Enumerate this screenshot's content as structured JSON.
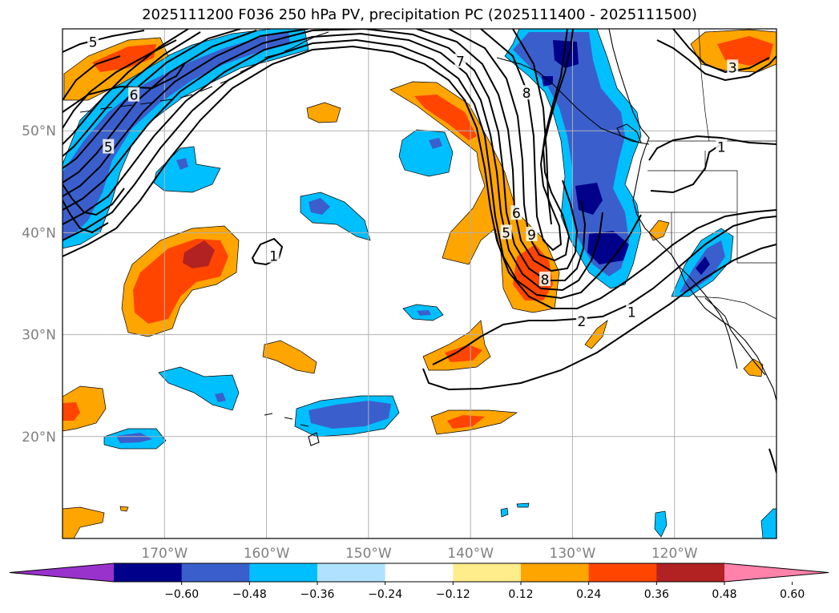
{
  "title": "2025111200 F036 250 hPa PV, precipitation PC (2025111400 - 2025111500)",
  "map": {
    "projection": "equirectangular",
    "lon_range": [
      -180,
      -110
    ],
    "lat_range": [
      10,
      60
    ],
    "grid": true,
    "lat_ticks": [
      {
        "value": 50,
        "label": "50°N"
      },
      {
        "value": 40,
        "label": "40°N"
      },
      {
        "value": 30,
        "label": "30°N"
      },
      {
        "value": 20,
        "label": "20°N"
      }
    ],
    "lon_ticks": [
      {
        "value": -170,
        "label": "170°W"
      },
      {
        "value": -160,
        "label": "160°W"
      },
      {
        "value": -150,
        "label": "150°W"
      },
      {
        "value": -140,
        "label": "140°W"
      },
      {
        "value": -130,
        "label": "130°W"
      },
      {
        "value": -120,
        "label": "120°W"
      }
    ],
    "pv_contour_labels": [
      {
        "text": "5",
        "lon": -177,
        "lat": 58.7
      },
      {
        "text": "6",
        "lon": -173,
        "lat": 53.5
      },
      {
        "text": "5",
        "lon": -175.5,
        "lat": 48.4
      },
      {
        "text": "7",
        "lon": -141,
        "lat": 56.8
      },
      {
        "text": "8",
        "lon": -134.5,
        "lat": 53.7
      },
      {
        "text": "1",
        "lon": -159.3,
        "lat": 37.7
      },
      {
        "text": "6",
        "lon": -135.5,
        "lat": 41.9
      },
      {
        "text": "5",
        "lon": -136.5,
        "lat": 40
      },
      {
        "text": "9",
        "lon": -134,
        "lat": 39.8
      },
      {
        "text": "8",
        "lon": -132.7,
        "lat": 35.4
      },
      {
        "text": "2",
        "lon": -129.1,
        "lat": 31.3
      },
      {
        "text": "1",
        "lon": -124.2,
        "lat": 32.2
      },
      {
        "text": "1",
        "lon": -115.4,
        "lat": 48.4
      },
      {
        "text": "3",
        "lon": -114.3,
        "lat": 56.2
      }
    ]
  },
  "colorbar": {
    "extend": "both",
    "colors": [
      "#9932cc",
      "#00008b",
      "#3a5fcd",
      "#00bfff",
      "#b0e2ff",
      "#ffffff",
      "#ffec8b",
      "#ffa500",
      "#ff4500",
      "#b22222",
      "#ff82ab"
    ],
    "ticks": [
      {
        "value": -0.6,
        "label": "−0.60"
      },
      {
        "value": -0.48,
        "label": "−0.48"
      },
      {
        "value": -0.36,
        "label": "−0.36"
      },
      {
        "value": -0.24,
        "label": "−0.24"
      },
      {
        "value": -0.12,
        "label": "−0.12"
      },
      {
        "value": 0.12,
        "label": "0.12"
      },
      {
        "value": 0.24,
        "label": "0.24"
      },
      {
        "value": 0.36,
        "label": "0.36"
      },
      {
        "value": 0.48,
        "label": "0.48"
      },
      {
        "value": 0.6,
        "label": "0.60"
      }
    ]
  },
  "precip_fields": [
    {
      "name": "west-pacific-negative-arc",
      "sign": "negative",
      "peak": -0.48,
      "points": [
        [
          -180,
          46
        ],
        [
          -176,
          50
        ],
        [
          -172,
          54.2
        ],
        [
          -166,
          57.6
        ],
        [
          -159,
          59.4
        ],
        [
          -150,
          60
        ],
        [
          -150,
          58.6
        ],
        [
          -157,
          57.6
        ],
        [
          -163,
          55.6
        ],
        [
          -168,
          52.8
        ],
        [
          -173,
          49
        ],
        [
          -176,
          44.5
        ],
        [
          -178,
          41
        ],
        [
          -180,
          39
        ]
      ]
    },
    {
      "name": "aleutian-positive-patch",
      "sign": "positive",
      "peak": 0.36,
      "points": [
        [
          -180,
          54
        ],
        [
          -177,
          57
        ],
        [
          -172,
          58.8
        ],
        [
          -170.5,
          58.4
        ],
        [
          -172,
          56.2
        ],
        [
          -177,
          54.4
        ]
      ]
    },
    {
      "name": "subtropical-positive-patch",
      "sign": "positive",
      "peak": 0.48,
      "points": [
        [
          -170,
          32
        ],
        [
          -167.5,
          33
        ],
        [
          -165.5,
          36.5
        ],
        [
          -164,
          39.5
        ],
        [
          -166,
          40.6
        ],
        [
          -169,
          39.5
        ],
        [
          -172,
          36.6
        ],
        [
          -173.5,
          33.5
        ],
        [
          -172.5,
          31.6
        ]
      ]
    },
    {
      "name": "central-negative-patch",
      "sign": "negative",
      "peak": -0.36,
      "points": [
        [
          -147,
          49
        ],
        [
          -144,
          49.5
        ],
        [
          -143,
          47
        ],
        [
          -145.5,
          46
        ],
        [
          -147.5,
          47
        ]
      ]
    },
    {
      "name": "midpacific-negative-patch",
      "sign": "negative",
      "peak": -0.36,
      "points": [
        [
          -156.5,
          42.6
        ],
        [
          -152.5,
          43
        ],
        [
          -149,
          40.5
        ],
        [
          -151.5,
          39.8
        ],
        [
          -155,
          41
        ]
      ]
    },
    {
      "name": "hawaii-negative-patch",
      "sign": "negative",
      "peak": -0.48,
      "points": [
        [
          -156,
          21.5
        ],
        [
          -151,
          23.5
        ],
        [
          -146,
          24
        ],
        [
          -145.5,
          22.2
        ],
        [
          -149.5,
          20.5
        ],
        [
          -154.5,
          20.3
        ]
      ]
    },
    {
      "name": "jet-exit-positive-band",
      "sign": "positive",
      "peak": 0.48,
      "points": [
        [
          -142.5,
          54
        ],
        [
          -138.5,
          54
        ],
        [
          -135.5,
          50
        ],
        [
          -134,
          44.5
        ],
        [
          -133,
          38
        ],
        [
          -131.5,
          33.5
        ],
        [
          -134.5,
          32.5
        ],
        [
          -137,
          35
        ],
        [
          -138.5,
          40.5
        ],
        [
          -141.5,
          46
        ],
        [
          -140,
          51
        ]
      ]
    },
    {
      "name": "subtropical-jet-positive-patch",
      "sign": "positive",
      "peak": 0.36,
      "points": [
        [
          -143,
          26.5
        ],
        [
          -138.5,
          27.5
        ],
        [
          -138,
          30.5
        ],
        [
          -140,
          29.5
        ],
        [
          -142.5,
          28.5
        ]
      ]
    },
    {
      "name": "trough-negative-band",
      "sign": "negative",
      "peak": -0.6,
      "points": [
        [
          -135,
          60
        ],
        [
          -128,
          60
        ],
        [
          -126.5,
          57
        ],
        [
          -125,
          52.5
        ],
        [
          -125,
          47
        ],
        [
          -124.5,
          42
        ],
        [
          -125.5,
          37
        ],
        [
          -128.5,
          36
        ],
        [
          -130.5,
          39.5
        ],
        [
          -132,
          45
        ],
        [
          -131.5,
          52
        ],
        [
          -133,
          57
        ]
      ]
    },
    {
      "name": "southwest-us-negative-patch",
      "sign": "negative",
      "peak": -0.48,
      "points": [
        [
          -119.5,
          34
        ],
        [
          -116.5,
          38
        ],
        [
          -115,
          39.8
        ],
        [
          -116,
          37
        ],
        [
          -118.5,
          33.5
        ]
      ]
    },
    {
      "name": "northeast-positive-patch",
      "sign": "positive",
      "peak": 0.48,
      "points": [
        [
          -117,
          60
        ],
        [
          -110,
          60
        ],
        [
          -110,
          57
        ],
        [
          -112.5,
          56.2
        ],
        [
          -116,
          57.5
        ]
      ]
    }
  ]
}
